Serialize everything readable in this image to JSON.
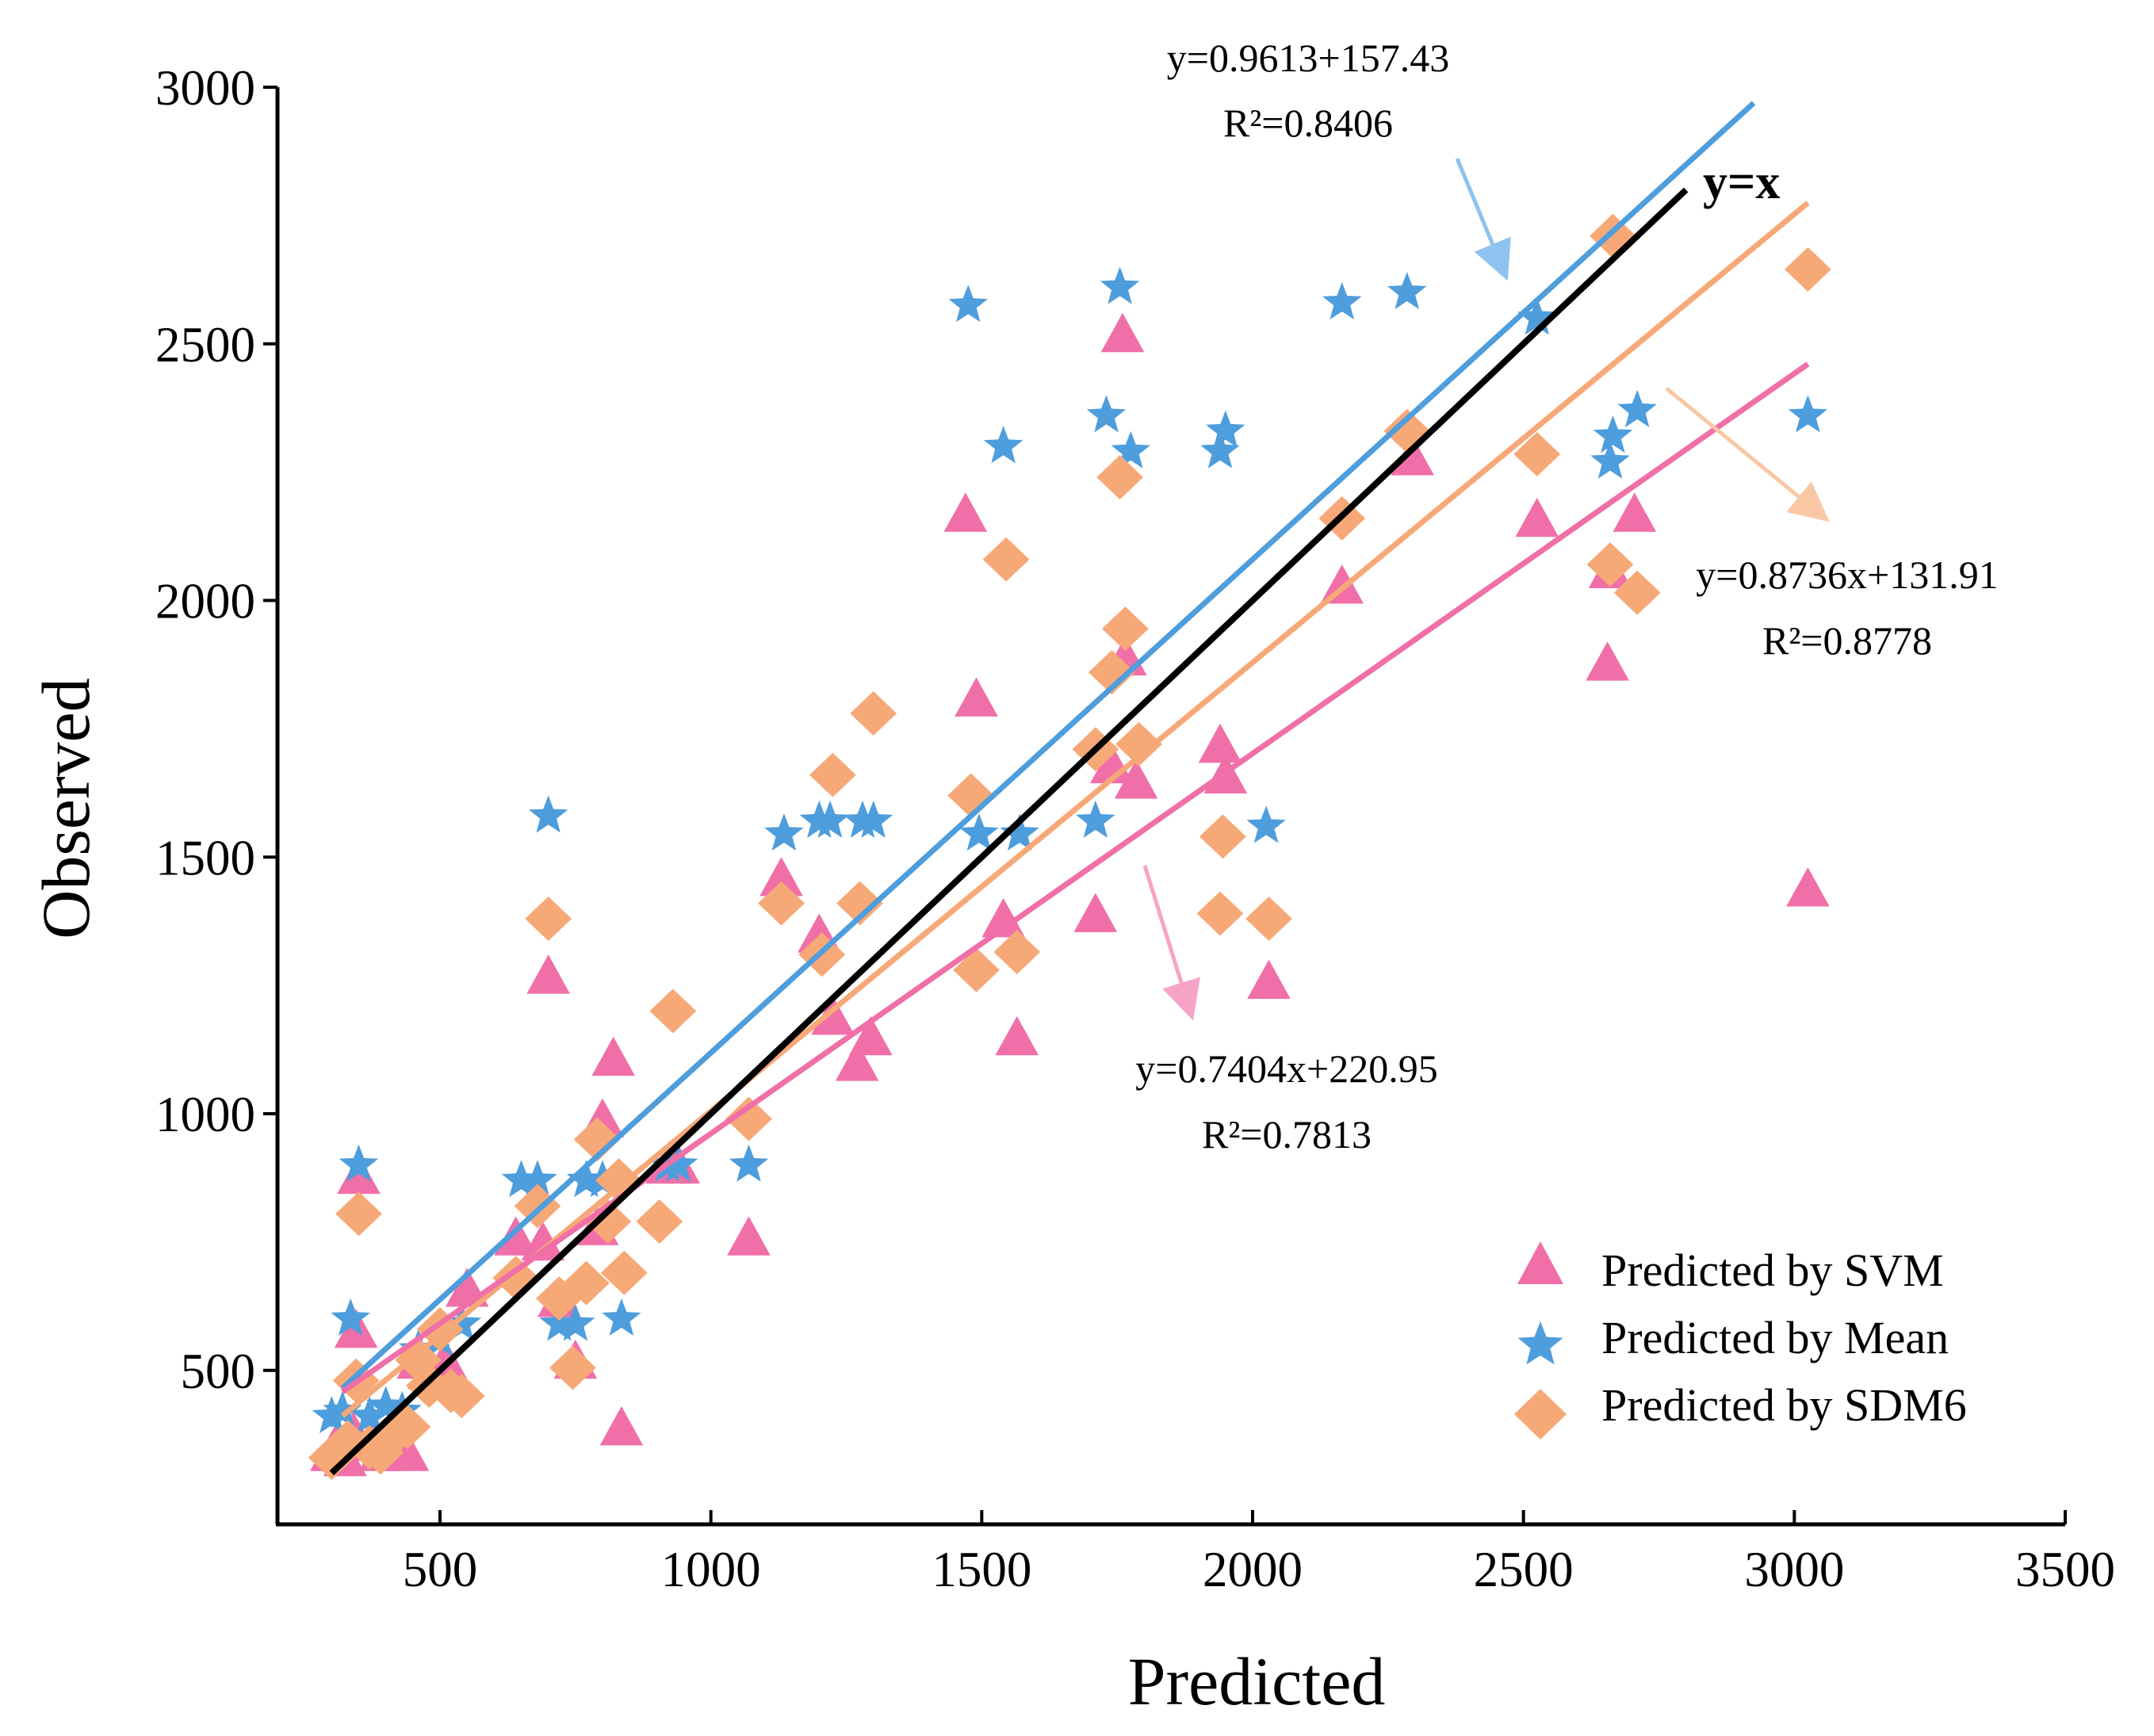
{
  "chart_data": {
    "type": "scatter",
    "xlabel": "Predicted",
    "ylabel": "Observed",
    "xlim": [
      200,
      3500
    ],
    "ylim": [
      200,
      3000
    ],
    "xticks": [
      500,
      1000,
      1500,
      2000,
      2500,
      3000,
      3500
    ],
    "yticks": [
      500,
      1000,
      1500,
      2000,
      2500,
      3000
    ],
    "grid": false,
    "legend_position": "bottom-right",
    "colors": {
      "svm": "#f06fa8",
      "mean": "#4e9ddc",
      "sdm6": "#f7a877",
      "identity": "#000000"
    },
    "series": [
      {
        "key": "svm",
        "name": "Predicted by SVM",
        "marker": "triangle",
        "points": [
          [
            300,
            340
          ],
          [
            310,
            360
          ],
          [
            325,
            330
          ],
          [
            340,
            380
          ],
          [
            345,
            580
          ],
          [
            350,
            880
          ],
          [
            370,
            360
          ],
          [
            390,
            340
          ],
          [
            420,
            370
          ],
          [
            440,
            340
          ],
          [
            460,
            520
          ],
          [
            480,
            500
          ],
          [
            510,
            520
          ],
          [
            550,
            660
          ],
          [
            640,
            760
          ],
          [
            690,
            750
          ],
          [
            700,
            1270
          ],
          [
            720,
            640
          ],
          [
            750,
            520
          ],
          [
            790,
            780
          ],
          [
            800,
            990
          ],
          [
            820,
            1110
          ],
          [
            835,
            390
          ],
          [
            920,
            900
          ],
          [
            940,
            900
          ],
          [
            1070,
            760
          ],
          [
            1130,
            1460
          ],
          [
            1200,
            1350
          ],
          [
            1225,
            1190
          ],
          [
            1270,
            1100
          ],
          [
            1295,
            1150
          ],
          [
            1470,
            2170
          ],
          [
            1490,
            1810
          ],
          [
            1540,
            1380
          ],
          [
            1565,
            1150
          ],
          [
            1710,
            1390
          ],
          [
            1740,
            1680
          ],
          [
            1760,
            2520
          ],
          [
            1765,
            1890
          ],
          [
            1785,
            1650
          ],
          [
            1940,
            1720
          ],
          [
            1950,
            1660
          ],
          [
            2030,
            1260
          ],
          [
            2165,
            2030
          ],
          [
            2295,
            2280
          ],
          [
            2525,
            2160
          ],
          [
            2655,
            1880
          ],
          [
            2660,
            2060
          ],
          [
            2705,
            2170
          ],
          [
            3025,
            1440
          ]
        ]
      },
      {
        "key": "mean",
        "name": "Predicted by Mean",
        "marker": "star",
        "points": [
          [
            300,
            410
          ],
          [
            320,
            420
          ],
          [
            335,
            600
          ],
          [
            350,
            900
          ],
          [
            370,
            410
          ],
          [
            400,
            430
          ],
          [
            430,
            420
          ],
          [
            460,
            540
          ],
          [
            500,
            560
          ],
          [
            540,
            590
          ],
          [
            650,
            870
          ],
          [
            680,
            870
          ],
          [
            700,
            1580
          ],
          [
            720,
            590
          ],
          [
            750,
            590
          ],
          [
            770,
            870
          ],
          [
            800,
            870
          ],
          [
            835,
            600
          ],
          [
            920,
            900
          ],
          [
            940,
            900
          ],
          [
            1070,
            900
          ],
          [
            1135,
            1545
          ],
          [
            1200,
            1570
          ],
          [
            1220,
            1570
          ],
          [
            1280,
            1570
          ],
          [
            1300,
            1570
          ],
          [
            1475,
            2575
          ],
          [
            1495,
            1545
          ],
          [
            1540,
            2300
          ],
          [
            1570,
            1545
          ],
          [
            1710,
            1570
          ],
          [
            1730,
            2360
          ],
          [
            1755,
            2610
          ],
          [
            1775,
            2290
          ],
          [
            1940,
            2290
          ],
          [
            1950,
            2330
          ],
          [
            2025,
            1560
          ],
          [
            2165,
            2580
          ],
          [
            2285,
            2600
          ],
          [
            2525,
            2550
          ],
          [
            2660,
            2270
          ],
          [
            2665,
            2320
          ],
          [
            2710,
            2370
          ],
          [
            3025,
            2360
          ]
        ]
      },
      {
        "key": "sdm6",
        "name": "Predicted by SDM6",
        "marker": "diamond",
        "points": [
          [
            300,
            330
          ],
          [
            315,
            345
          ],
          [
            330,
            360
          ],
          [
            345,
            480
          ],
          [
            350,
            805
          ],
          [
            370,
            350
          ],
          [
            390,
            340
          ],
          [
            410,
            370
          ],
          [
            440,
            390
          ],
          [
            460,
            520
          ],
          [
            480,
            470
          ],
          [
            500,
            580
          ],
          [
            520,
            460
          ],
          [
            540,
            450
          ],
          [
            640,
            680
          ],
          [
            680,
            820
          ],
          [
            700,
            1380
          ],
          [
            720,
            640
          ],
          [
            745,
            505
          ],
          [
            770,
            670
          ],
          [
            790,
            950
          ],
          [
            810,
            790
          ],
          [
            830,
            870
          ],
          [
            840,
            690
          ],
          [
            905,
            790
          ],
          [
            930,
            1200
          ],
          [
            1070,
            990
          ],
          [
            1130,
            1410
          ],
          [
            1205,
            1310
          ],
          [
            1225,
            1660
          ],
          [
            1275,
            1410
          ],
          [
            1300,
            1780
          ],
          [
            1480,
            1620
          ],
          [
            1490,
            1280
          ],
          [
            1545,
            2080
          ],
          [
            1565,
            1315
          ],
          [
            1710,
            1710
          ],
          [
            1740,
            1860
          ],
          [
            1755,
            2240
          ],
          [
            1765,
            1945
          ],
          [
            1790,
            1720
          ],
          [
            1940,
            1390
          ],
          [
            1945,
            1540
          ],
          [
            2030,
            1380
          ],
          [
            2165,
            2160
          ],
          [
            2285,
            2330
          ],
          [
            2525,
            2285
          ],
          [
            2660,
            2070
          ],
          [
            2665,
            2710
          ],
          [
            2710,
            2015
          ],
          [
            3025,
            2645
          ]
        ]
      }
    ],
    "fit_lines": [
      {
        "series": "mean",
        "slope": 0.9613,
        "intercept": 157.43,
        "x_range": [
          320,
          2925
        ]
      },
      {
        "series": "sdm6",
        "slope": 0.8736,
        "intercept": 131.91,
        "x_range": [
          320,
          3025
        ]
      },
      {
        "series": "svm",
        "slope": 0.7404,
        "intercept": 220.95,
        "x_range": [
          320,
          3025
        ]
      },
      {
        "series": "identity",
        "slope": 1,
        "intercept": 0,
        "x_range": [
          300,
          2800
        ]
      }
    ],
    "annotations": {
      "identity_label": "y=x",
      "mean_eq": "y=0.9613+157.43",
      "mean_r2": "R²=0.8406",
      "sdm6_eq": "y=0.8736x+131.91",
      "sdm6_r2": "R²=0.8778",
      "svm_eq": "y=0.7404x+220.95",
      "svm_r2": "R²=0.7813"
    }
  }
}
